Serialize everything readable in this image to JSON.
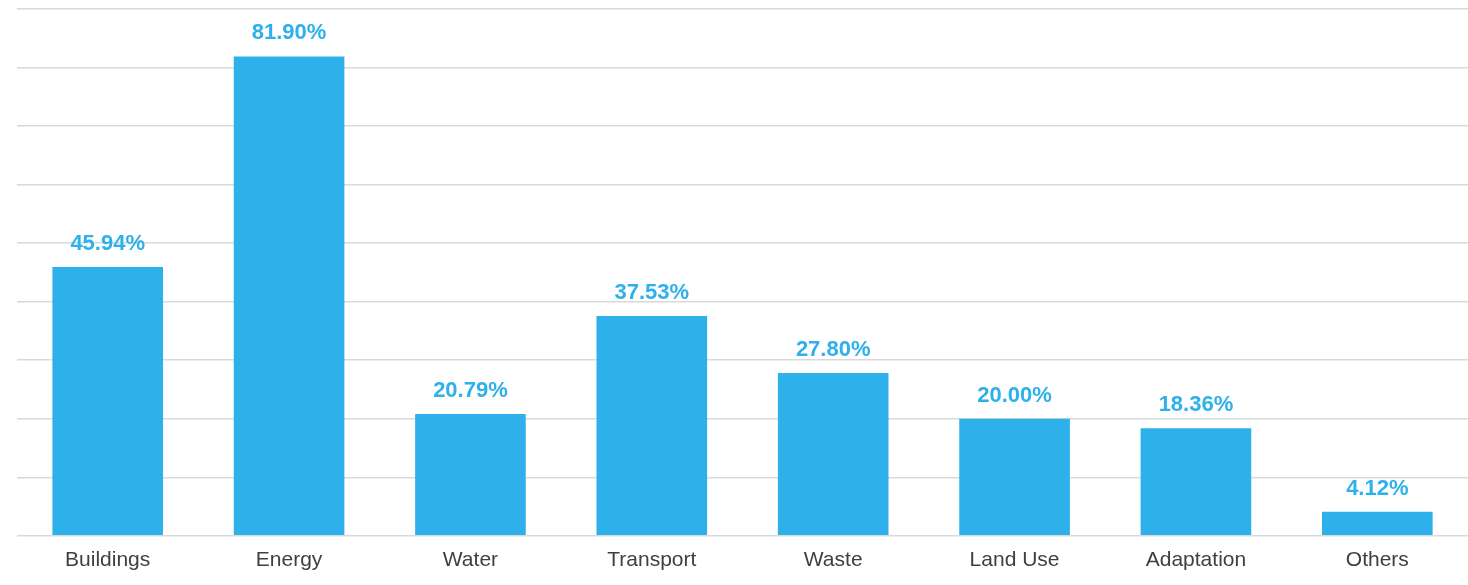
{
  "chart_data": {
    "type": "bar",
    "categories": [
      "Buildings",
      "Energy",
      "Water",
      "Transport",
      "Waste",
      "Land Use",
      "Adaptation",
      "Others"
    ],
    "values": [
      45.94,
      81.9,
      20.79,
      37.53,
      27.8,
      20.0,
      18.36,
      4.12
    ],
    "value_labels": [
      "45.94%",
      "81.90%",
      "20.79%",
      "37.53%",
      "27.80%",
      "20.00%",
      "18.36%",
      "4.12%"
    ],
    "color": "#2eb0eb",
    "ylim": [
      0,
      90
    ],
    "yticks": [
      {
        "value": 0,
        "label": null
      },
      {
        "value": 10,
        "label": null
      },
      {
        "value": 20,
        "label": null
      },
      {
        "value": 30,
        "label": null
      },
      {
        "value": 40,
        "label": null
      },
      {
        "value": 50,
        "label": null
      },
      {
        "value": 60,
        "label": null
      },
      {
        "value": 70,
        "label": null
      },
      {
        "value": 80,
        "label": null
      },
      {
        "value": 90,
        "label": null
      }
    ],
    "grid": "y",
    "tick_labels": "x",
    "legend": false
  }
}
